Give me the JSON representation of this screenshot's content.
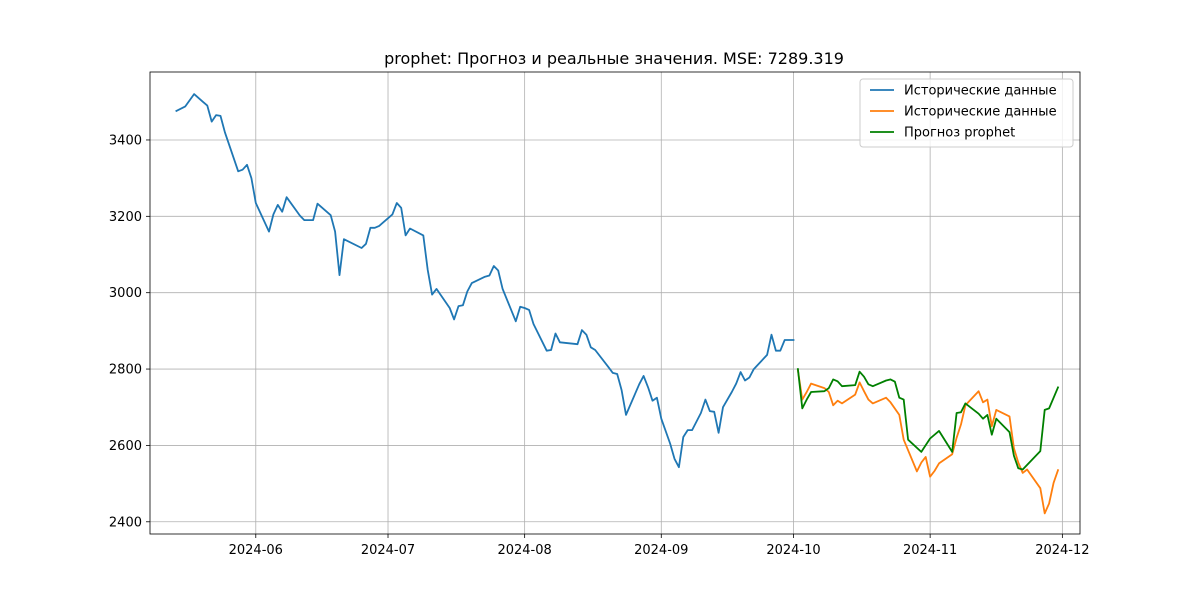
{
  "chart_data": {
    "type": "line",
    "title": "prophet: Прогноз и реальные значения. MSE: 7289.319",
    "xlabel": "",
    "ylabel": "",
    "x_range": [
      "2024-05-08",
      "2024-12-05"
    ],
    "y_range": [
      2368,
      3578
    ],
    "grid": true,
    "legend_position": "top-right",
    "x_ticks": [
      {
        "date": "2024-06-01",
        "label": "2024-06"
      },
      {
        "date": "2024-07-01",
        "label": "2024-07"
      },
      {
        "date": "2024-08-01",
        "label": "2024-08"
      },
      {
        "date": "2024-09-01",
        "label": "2024-09"
      },
      {
        "date": "2024-10-01",
        "label": "2024-10"
      },
      {
        "date": "2024-11-01",
        "label": "2024-11"
      },
      {
        "date": "2024-12-01",
        "label": "2024-12"
      }
    ],
    "y_ticks": [
      {
        "value": 2400,
        "label": "2400"
      },
      {
        "value": 2600,
        "label": "2600"
      },
      {
        "value": 2800,
        "label": "2800"
      },
      {
        "value": 3000,
        "label": "3000"
      },
      {
        "value": 3200,
        "label": "3200"
      },
      {
        "value": 3400,
        "label": "3400"
      }
    ],
    "series": [
      {
        "name": "Исторические данные",
        "color": "#1f77b4",
        "points": [
          [
            "2024-05-14",
            3476
          ],
          [
            "2024-05-16",
            3488
          ],
          [
            "2024-05-18",
            3520
          ],
          [
            "2024-05-20",
            3500
          ],
          [
            "2024-05-21",
            3490
          ],
          [
            "2024-05-22",
            3448
          ],
          [
            "2024-05-23",
            3465
          ],
          [
            "2024-05-24",
            3463
          ],
          [
            "2024-05-25",
            3420
          ],
          [
            "2024-05-28",
            3318
          ],
          [
            "2024-05-29",
            3322
          ],
          [
            "2024-05-30",
            3335
          ],
          [
            "2024-05-31",
            3300
          ],
          [
            "2024-06-01",
            3235
          ],
          [
            "2024-06-04",
            3160
          ],
          [
            "2024-06-05",
            3205
          ],
          [
            "2024-06-06",
            3230
          ],
          [
            "2024-06-07",
            3212
          ],
          [
            "2024-06-08",
            3250
          ],
          [
            "2024-06-11",
            3202
          ],
          [
            "2024-06-12",
            3190
          ],
          [
            "2024-06-14",
            3190
          ],
          [
            "2024-06-15",
            3233
          ],
          [
            "2024-06-18",
            3203
          ],
          [
            "2024-06-19",
            3160
          ],
          [
            "2024-06-20",
            3046
          ],
          [
            "2024-06-21",
            3140
          ],
          [
            "2024-06-25",
            3117
          ],
          [
            "2024-06-26",
            3128
          ],
          [
            "2024-06-27",
            3170
          ],
          [
            "2024-06-28",
            3170
          ],
          [
            "2024-06-29",
            3175
          ],
          [
            "2024-07-02",
            3205
          ],
          [
            "2024-07-03",
            3235
          ],
          [
            "2024-07-04",
            3222
          ],
          [
            "2024-07-05",
            3150
          ],
          [
            "2024-07-06",
            3168
          ],
          [
            "2024-07-09",
            3150
          ],
          [
            "2024-07-10",
            3060
          ],
          [
            "2024-07-11",
            2995
          ],
          [
            "2024-07-12",
            3010
          ],
          [
            "2024-07-15",
            2960
          ],
          [
            "2024-07-16",
            2930
          ],
          [
            "2024-07-17",
            2965
          ],
          [
            "2024-07-18",
            2967
          ],
          [
            "2024-07-19",
            3003
          ],
          [
            "2024-07-20",
            3025
          ],
          [
            "2024-07-23",
            3042
          ],
          [
            "2024-07-24",
            3045
          ],
          [
            "2024-07-25",
            3070
          ],
          [
            "2024-07-26",
            3058
          ],
          [
            "2024-07-27",
            3010
          ],
          [
            "2024-07-30",
            2925
          ],
          [
            "2024-07-31",
            2963
          ],
          [
            "2024-08-01",
            2960
          ],
          [
            "2024-08-02",
            2955
          ],
          [
            "2024-08-03",
            2918
          ],
          [
            "2024-08-06",
            2848
          ],
          [
            "2024-08-07",
            2850
          ],
          [
            "2024-08-08",
            2893
          ],
          [
            "2024-08-09",
            2870
          ],
          [
            "2024-08-13",
            2865
          ],
          [
            "2024-08-14",
            2902
          ],
          [
            "2024-08-15",
            2890
          ],
          [
            "2024-08-16",
            2857
          ],
          [
            "2024-08-17",
            2850
          ],
          [
            "2024-08-20",
            2805
          ],
          [
            "2024-08-21",
            2790
          ],
          [
            "2024-08-22",
            2787
          ],
          [
            "2024-08-23",
            2745
          ],
          [
            "2024-08-24",
            2680
          ],
          [
            "2024-08-27",
            2760
          ],
          [
            "2024-08-28",
            2782
          ],
          [
            "2024-08-29",
            2752
          ],
          [
            "2024-08-30",
            2717
          ],
          [
            "2024-08-31",
            2725
          ],
          [
            "2024-09-01",
            2670
          ],
          [
            "2024-09-03",
            2605
          ],
          [
            "2024-09-04",
            2565
          ],
          [
            "2024-09-05",
            2543
          ],
          [
            "2024-09-06",
            2622
          ],
          [
            "2024-09-07",
            2640
          ],
          [
            "2024-09-08",
            2640
          ],
          [
            "2024-09-10",
            2685
          ],
          [
            "2024-09-11",
            2720
          ],
          [
            "2024-09-12",
            2690
          ],
          [
            "2024-09-13",
            2688
          ],
          [
            "2024-09-14",
            2633
          ],
          [
            "2024-09-15",
            2700
          ],
          [
            "2024-09-17",
            2740
          ],
          [
            "2024-09-18",
            2762
          ],
          [
            "2024-09-19",
            2792
          ],
          [
            "2024-09-20",
            2770
          ],
          [
            "2024-09-21",
            2778
          ],
          [
            "2024-09-22",
            2800
          ],
          [
            "2024-09-25",
            2837
          ],
          [
            "2024-09-26",
            2890
          ],
          [
            "2024-09-27",
            2848
          ],
          [
            "2024-09-28",
            2848
          ],
          [
            "2024-09-29",
            2876
          ],
          [
            "2024-09-30",
            2876
          ],
          [
            "2024-10-01",
            2876
          ]
        ]
      },
      {
        "name": "Исторические данные",
        "color": "#ff7f0e",
        "points": [
          [
            "2024-10-02",
            2797
          ],
          [
            "2024-10-03",
            2720
          ],
          [
            "2024-10-04",
            2740
          ],
          [
            "2024-10-05",
            2762
          ],
          [
            "2024-10-08",
            2750
          ],
          [
            "2024-10-09",
            2740
          ],
          [
            "2024-10-10",
            2705
          ],
          [
            "2024-10-11",
            2717
          ],
          [
            "2024-10-12",
            2710
          ],
          [
            "2024-10-15",
            2733
          ],
          [
            "2024-10-16",
            2765
          ],
          [
            "2024-10-17",
            2742
          ],
          [
            "2024-10-18",
            2720
          ],
          [
            "2024-10-19",
            2710
          ],
          [
            "2024-10-22",
            2725
          ],
          [
            "2024-10-23",
            2713
          ],
          [
            "2024-10-25",
            2680
          ],
          [
            "2024-10-26",
            2615
          ],
          [
            "2024-10-29",
            2532
          ],
          [
            "2024-10-30",
            2555
          ],
          [
            "2024-10-31",
            2570
          ],
          [
            "2024-11-01",
            2518
          ],
          [
            "2024-11-02",
            2533
          ],
          [
            "2024-11-03",
            2553
          ],
          [
            "2024-11-06",
            2577
          ],
          [
            "2024-11-07",
            2620
          ],
          [
            "2024-11-08",
            2655
          ],
          [
            "2024-11-09",
            2705
          ],
          [
            "2024-11-12",
            2742
          ],
          [
            "2024-11-13",
            2713
          ],
          [
            "2024-11-14",
            2720
          ],
          [
            "2024-11-15",
            2650
          ],
          [
            "2024-11-16",
            2693
          ],
          [
            "2024-11-19",
            2676
          ],
          [
            "2024-11-20",
            2593
          ],
          [
            "2024-11-21",
            2555
          ],
          [
            "2024-11-22",
            2528
          ],
          [
            "2024-11-23",
            2537
          ],
          [
            "2024-11-26",
            2488
          ],
          [
            "2024-11-27",
            2422
          ],
          [
            "2024-11-28",
            2448
          ],
          [
            "2024-11-29",
            2502
          ],
          [
            "2024-11-30",
            2535
          ]
        ]
      },
      {
        "name": "Прогноз prophet",
        "color": "#008000",
        "points": [
          [
            "2024-10-02",
            2800
          ],
          [
            "2024-10-03",
            2697
          ],
          [
            "2024-10-04",
            2720
          ],
          [
            "2024-10-05",
            2740
          ],
          [
            "2024-10-08",
            2742
          ],
          [
            "2024-10-09",
            2750
          ],
          [
            "2024-10-10",
            2773
          ],
          [
            "2024-10-11",
            2768
          ],
          [
            "2024-10-12",
            2755
          ],
          [
            "2024-10-15",
            2758
          ],
          [
            "2024-10-16",
            2793
          ],
          [
            "2024-10-17",
            2780
          ],
          [
            "2024-10-18",
            2760
          ],
          [
            "2024-10-19",
            2755
          ],
          [
            "2024-10-22",
            2770
          ],
          [
            "2024-10-23",
            2773
          ],
          [
            "2024-10-24",
            2767
          ],
          [
            "2024-10-25",
            2725
          ],
          [
            "2024-10-26",
            2720
          ],
          [
            "2024-10-27",
            2615
          ],
          [
            "2024-10-30",
            2583
          ],
          [
            "2024-11-01",
            2618
          ],
          [
            "2024-11-03",
            2638
          ],
          [
            "2024-11-06",
            2583
          ],
          [
            "2024-11-07",
            2685
          ],
          [
            "2024-11-08",
            2687
          ],
          [
            "2024-11-09",
            2710
          ],
          [
            "2024-11-12",
            2683
          ],
          [
            "2024-11-13",
            2670
          ],
          [
            "2024-11-14",
            2680
          ],
          [
            "2024-11-15",
            2628
          ],
          [
            "2024-11-16",
            2670
          ],
          [
            "2024-11-19",
            2635
          ],
          [
            "2024-11-20",
            2573
          ],
          [
            "2024-11-21",
            2540
          ],
          [
            "2024-11-22",
            2537
          ],
          [
            "2024-11-26",
            2585
          ],
          [
            "2024-11-27",
            2693
          ],
          [
            "2024-11-28",
            2697
          ],
          [
            "2024-11-30",
            2752
          ]
        ]
      }
    ]
  }
}
